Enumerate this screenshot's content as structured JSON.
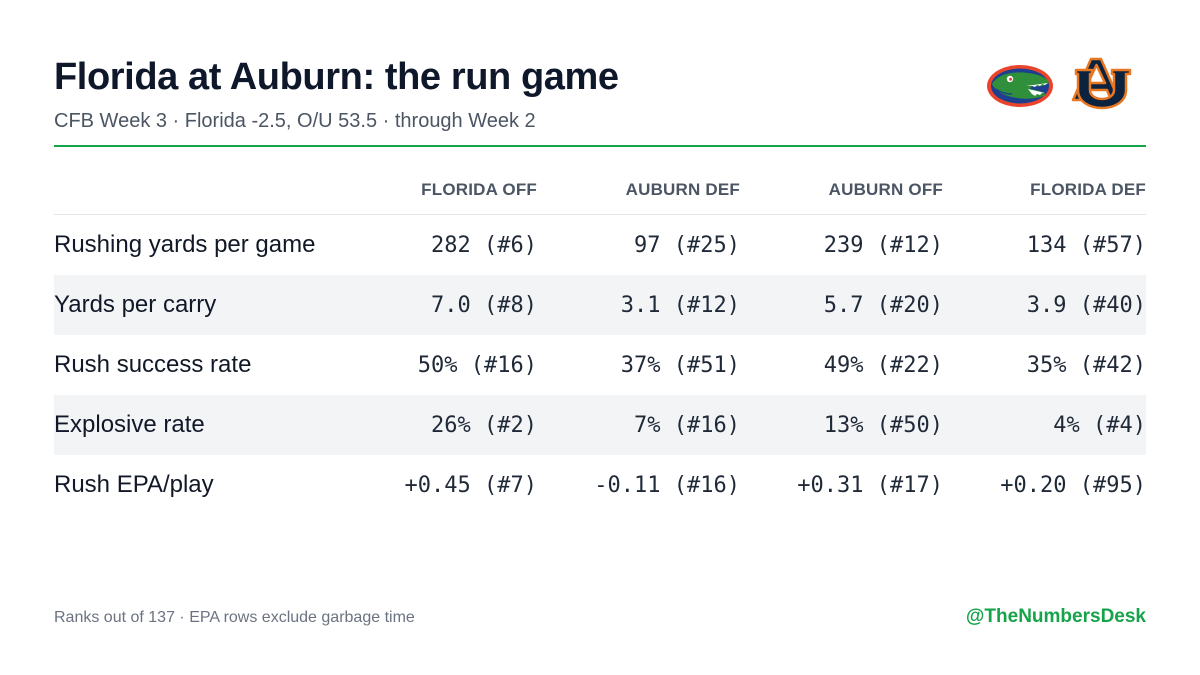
{
  "header": {
    "title": "Florida at Auburn: the run game",
    "subtitle": "CFB Week 3 · Florida -2.5, O/U 53.5 · through Week 2"
  },
  "logos": {
    "florida": "florida-gators-logo",
    "auburn": "auburn-tigers-logo"
  },
  "colors": {
    "accent": "#16a34a",
    "row_shade": "#f3f4f6",
    "florida_orange": "#e8452c",
    "florida_blue": "#1d3f8f",
    "florida_green": "#2f8f3a",
    "auburn_navy": "#0c2340",
    "auburn_orange": "#e87722"
  },
  "table": {
    "columns": [
      "FLORIDA OFF",
      "AUBURN DEF",
      "AUBURN OFF",
      "FLORIDA DEF"
    ],
    "rows": [
      {
        "metric": "Rushing yards per game",
        "values": [
          "282 (#6)",
          "97 (#25)",
          "239 (#12)",
          "134 (#57)"
        ]
      },
      {
        "metric": "Yards per carry",
        "values": [
          "7.0 (#8)",
          "3.1 (#12)",
          "5.7 (#20)",
          "3.9 (#40)"
        ]
      },
      {
        "metric": "Rush success rate",
        "values": [
          "50% (#16)",
          "37% (#51)",
          "49% (#22)",
          "35% (#42)"
        ]
      },
      {
        "metric": "Explosive rate",
        "values": [
          "26% (#2)",
          "7% (#16)",
          "13% (#50)",
          "4% (#4)"
        ]
      },
      {
        "metric": "Rush EPA/play",
        "values": [
          "+0.45 (#7)",
          "-0.11 (#16)",
          "+0.31 (#17)",
          "+0.20 (#95)"
        ]
      }
    ]
  },
  "footer": {
    "note": "Ranks out of 137 · EPA rows exclude garbage time",
    "handle": "@TheNumbersDesk"
  }
}
